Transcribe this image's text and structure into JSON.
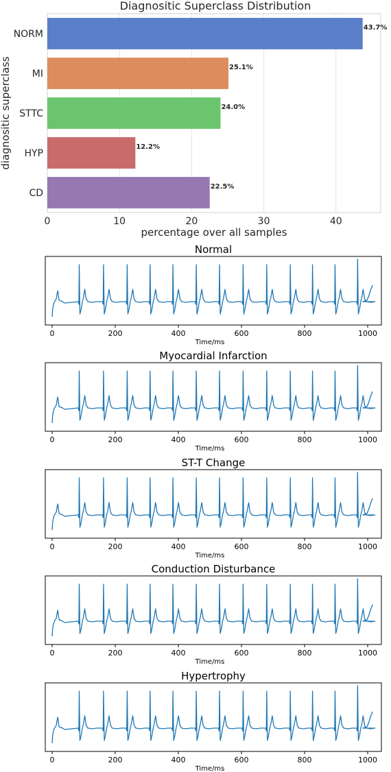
{
  "chart_data": [
    {
      "type": "bar",
      "orientation": "horizontal",
      "title": "Diagnositic Superclass Distribution",
      "xlabel": "percentage over all samples",
      "ylabel": "diagnositic superclass",
      "categories": [
        "NORM",
        "MI",
        "STTC",
        "HYP",
        "CD"
      ],
      "values": [
        43.7,
        25.1,
        24.0,
        12.2,
        22.5
      ],
      "value_labels": [
        "43.7%",
        "25.1%",
        "24.0%",
        "12.2%",
        "22.5%"
      ],
      "colors": [
        "#5a7fc8",
        "#dd8c5e",
        "#6cc56e",
        "#c96b6b",
        "#9579b0"
      ],
      "xlim": [
        0,
        46.2
      ],
      "xticks": [
        0,
        10,
        20,
        30,
        40
      ],
      "xtick_labels": [
        "0",
        "10",
        "20",
        "30",
        "40"
      ],
      "grid": "vertical"
    },
    {
      "type": "line",
      "title": "Normal",
      "xlabel": "Time/ms",
      "xlim": [
        0,
        1000
      ],
      "xticks": [
        0,
        200,
        400,
        600,
        800,
        1000
      ],
      "xtick_labels": [
        "0",
        "200",
        "400",
        "600",
        "800",
        "1000"
      ],
      "line_color": "#1f77b4"
    },
    {
      "type": "line",
      "title": "Myocardial Infarction",
      "xlabel": "Time/ms",
      "xlim": [
        0,
        1000
      ],
      "xticks": [
        0,
        200,
        400,
        600,
        800,
        1000
      ],
      "xtick_labels": [
        "0",
        "200",
        "400",
        "600",
        "800",
        "1000"
      ],
      "line_color": "#1f77b4"
    },
    {
      "type": "line",
      "title": "ST-T Change",
      "xlabel": "Time/ms",
      "xlim": [
        0,
        1000
      ],
      "xticks": [
        0,
        200,
        400,
        600,
        800,
        1000
      ],
      "xtick_labels": [
        "0",
        "200",
        "400",
        "600",
        "800",
        "1000"
      ],
      "line_color": "#1f77b4"
    },
    {
      "type": "line",
      "title": "Conduction Disturbance",
      "xlabel": "Time/ms",
      "xlim": [
        0,
        1000
      ],
      "xticks": [
        0,
        200,
        400,
        600,
        800,
        1000
      ],
      "xtick_labels": [
        "0",
        "200",
        "400",
        "600",
        "800",
        "1000"
      ],
      "line_color": "#1f77b4"
    },
    {
      "type": "line",
      "title": "Hypertrophy",
      "xlabel": "Time/ms",
      "xlim": [
        0,
        1000
      ],
      "xticks": [
        0,
        200,
        400,
        600,
        800,
        1000
      ],
      "xtick_labels": [
        "0",
        "200",
        "400",
        "600",
        "800",
        "1000"
      ],
      "line_color": "#1f77b4"
    }
  ]
}
